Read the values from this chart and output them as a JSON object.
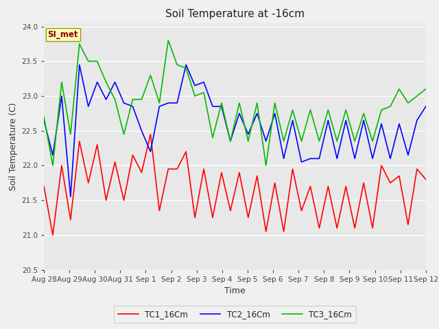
{
  "title": "Soil Temperature at -16cm",
  "xlabel": "Time",
  "ylabel": "Soil Temperature (C)",
  "ylim": [
    20.5,
    24.05
  ],
  "annotation": "SI_met",
  "fig_bg": "#f0f0f0",
  "plot_bg": "#e8e8e8",
  "legend_labels": [
    "TC1_16Cm",
    "TC2_16Cm",
    "TC3_16Cm"
  ],
  "colors": [
    "#ff0000",
    "#0000ff",
    "#00bb00"
  ],
  "xtick_labels": [
    "Aug 28",
    "Aug 29",
    "Aug 30",
    "Aug 31",
    "Sep 1",
    "Sep 2",
    "Sep 3",
    "Sep 4",
    "Sep 5",
    "Sep 6",
    "Sep 7",
    "Sep 8",
    "Sep 9",
    "Sep 10",
    "Sep 11",
    "Sep 12"
  ],
  "tc1": [
    21.7,
    21.0,
    22.0,
    21.22,
    22.35,
    21.75,
    22.3,
    21.5,
    22.05,
    21.5,
    22.15,
    21.9,
    22.45,
    21.35,
    21.95,
    21.95,
    22.2,
    21.25,
    21.95,
    21.25,
    21.9,
    21.35,
    21.9,
    21.25,
    21.85,
    21.05,
    21.75,
    21.05,
    21.95,
    21.35,
    21.7,
    21.1,
    21.7,
    21.1,
    21.7,
    21.1,
    21.75,
    21.1,
    22.0,
    21.75,
    21.85,
    21.15,
    21.95,
    21.8
  ],
  "tc2": [
    22.65,
    22.15,
    23.0,
    21.55,
    23.45,
    22.85,
    23.2,
    22.95,
    23.2,
    22.9,
    22.85,
    22.5,
    22.2,
    22.85,
    22.9,
    22.9,
    23.45,
    23.15,
    23.2,
    22.85,
    22.85,
    22.35,
    22.75,
    22.45,
    22.75,
    22.35,
    22.75,
    22.1,
    22.65,
    22.05,
    22.1,
    22.1,
    22.65,
    22.1,
    22.65,
    22.1,
    22.65,
    22.1,
    22.6,
    22.1,
    22.6,
    22.15,
    22.65,
    22.85
  ],
  "tc3": [
    22.7,
    22.0,
    23.2,
    22.45,
    23.75,
    23.5,
    23.5,
    23.2,
    22.95,
    22.45,
    22.95,
    22.95,
    23.3,
    22.9,
    23.8,
    23.45,
    23.4,
    23.0,
    23.05,
    22.4,
    22.9,
    22.35,
    22.9,
    22.35,
    22.9,
    22.0,
    22.9,
    22.35,
    22.8,
    22.35,
    22.8,
    22.35,
    22.8,
    22.35,
    22.8,
    22.35,
    22.75,
    22.35,
    22.8,
    22.85,
    23.1,
    22.9,
    23.0,
    23.1
  ],
  "n_days": 15,
  "linewidth": 1.2
}
